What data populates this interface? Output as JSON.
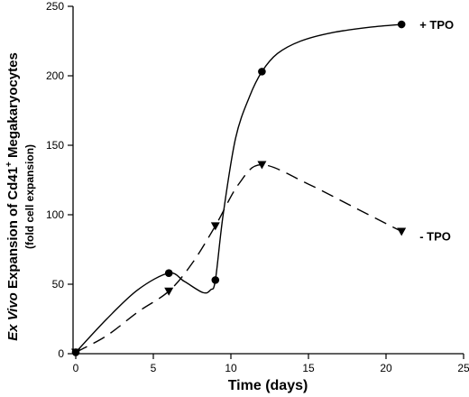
{
  "chart_data": {
    "type": "line",
    "xlabel": "Time (days)",
    "ylabel": {
      "italic_part": "Ex Vivo",
      "main_part": " Expansion of Cd41",
      "superscript": "+",
      "tail": " Megakaryocytes",
      "sub": "(fold cell expansion)"
    },
    "xlim": [
      0,
      25
    ],
    "ylim": [
      0,
      250
    ],
    "x_ticks": [
      0,
      5,
      10,
      15,
      20,
      25
    ],
    "y_ticks": [
      0,
      50,
      100,
      150,
      200,
      250
    ],
    "grid": false,
    "series": [
      {
        "name": "+ TPO",
        "marker": "circle",
        "line_style": "solid",
        "points": [
          [
            0,
            1
          ],
          [
            6,
            58
          ],
          [
            9,
            53
          ],
          [
            12,
            203
          ],
          [
            21,
            237
          ]
        ],
        "curve": [
          [
            0,
            1
          ],
          [
            2,
            25
          ],
          [
            4,
            46
          ],
          [
            6,
            58
          ],
          [
            7,
            52
          ],
          [
            8.2,
            44
          ],
          [
            8.7,
            46
          ],
          [
            9,
            53
          ],
          [
            9.5,
            100
          ],
          [
            10.3,
            155
          ],
          [
            11.2,
            185
          ],
          [
            12,
            203
          ],
          [
            13,
            216
          ],
          [
            14.5,
            225
          ],
          [
            16.5,
            231
          ],
          [
            19,
            235
          ],
          [
            21,
            237
          ]
        ]
      },
      {
        "name": "- TPO",
        "marker": "triangle-down",
        "line_style": "dashed",
        "points": [
          [
            0,
            1
          ],
          [
            6,
            45
          ],
          [
            9,
            92
          ],
          [
            12,
            136
          ],
          [
            21,
            88
          ]
        ],
        "curve": [
          [
            0,
            1
          ],
          [
            2,
            13
          ],
          [
            4,
            30
          ],
          [
            6,
            45
          ],
          [
            7.5,
            65
          ],
          [
            9,
            92
          ],
          [
            10.5,
            122
          ],
          [
            12,
            136
          ],
          [
            15,
            122
          ],
          [
            18,
            105
          ],
          [
            21,
            88
          ]
        ]
      }
    ]
  }
}
